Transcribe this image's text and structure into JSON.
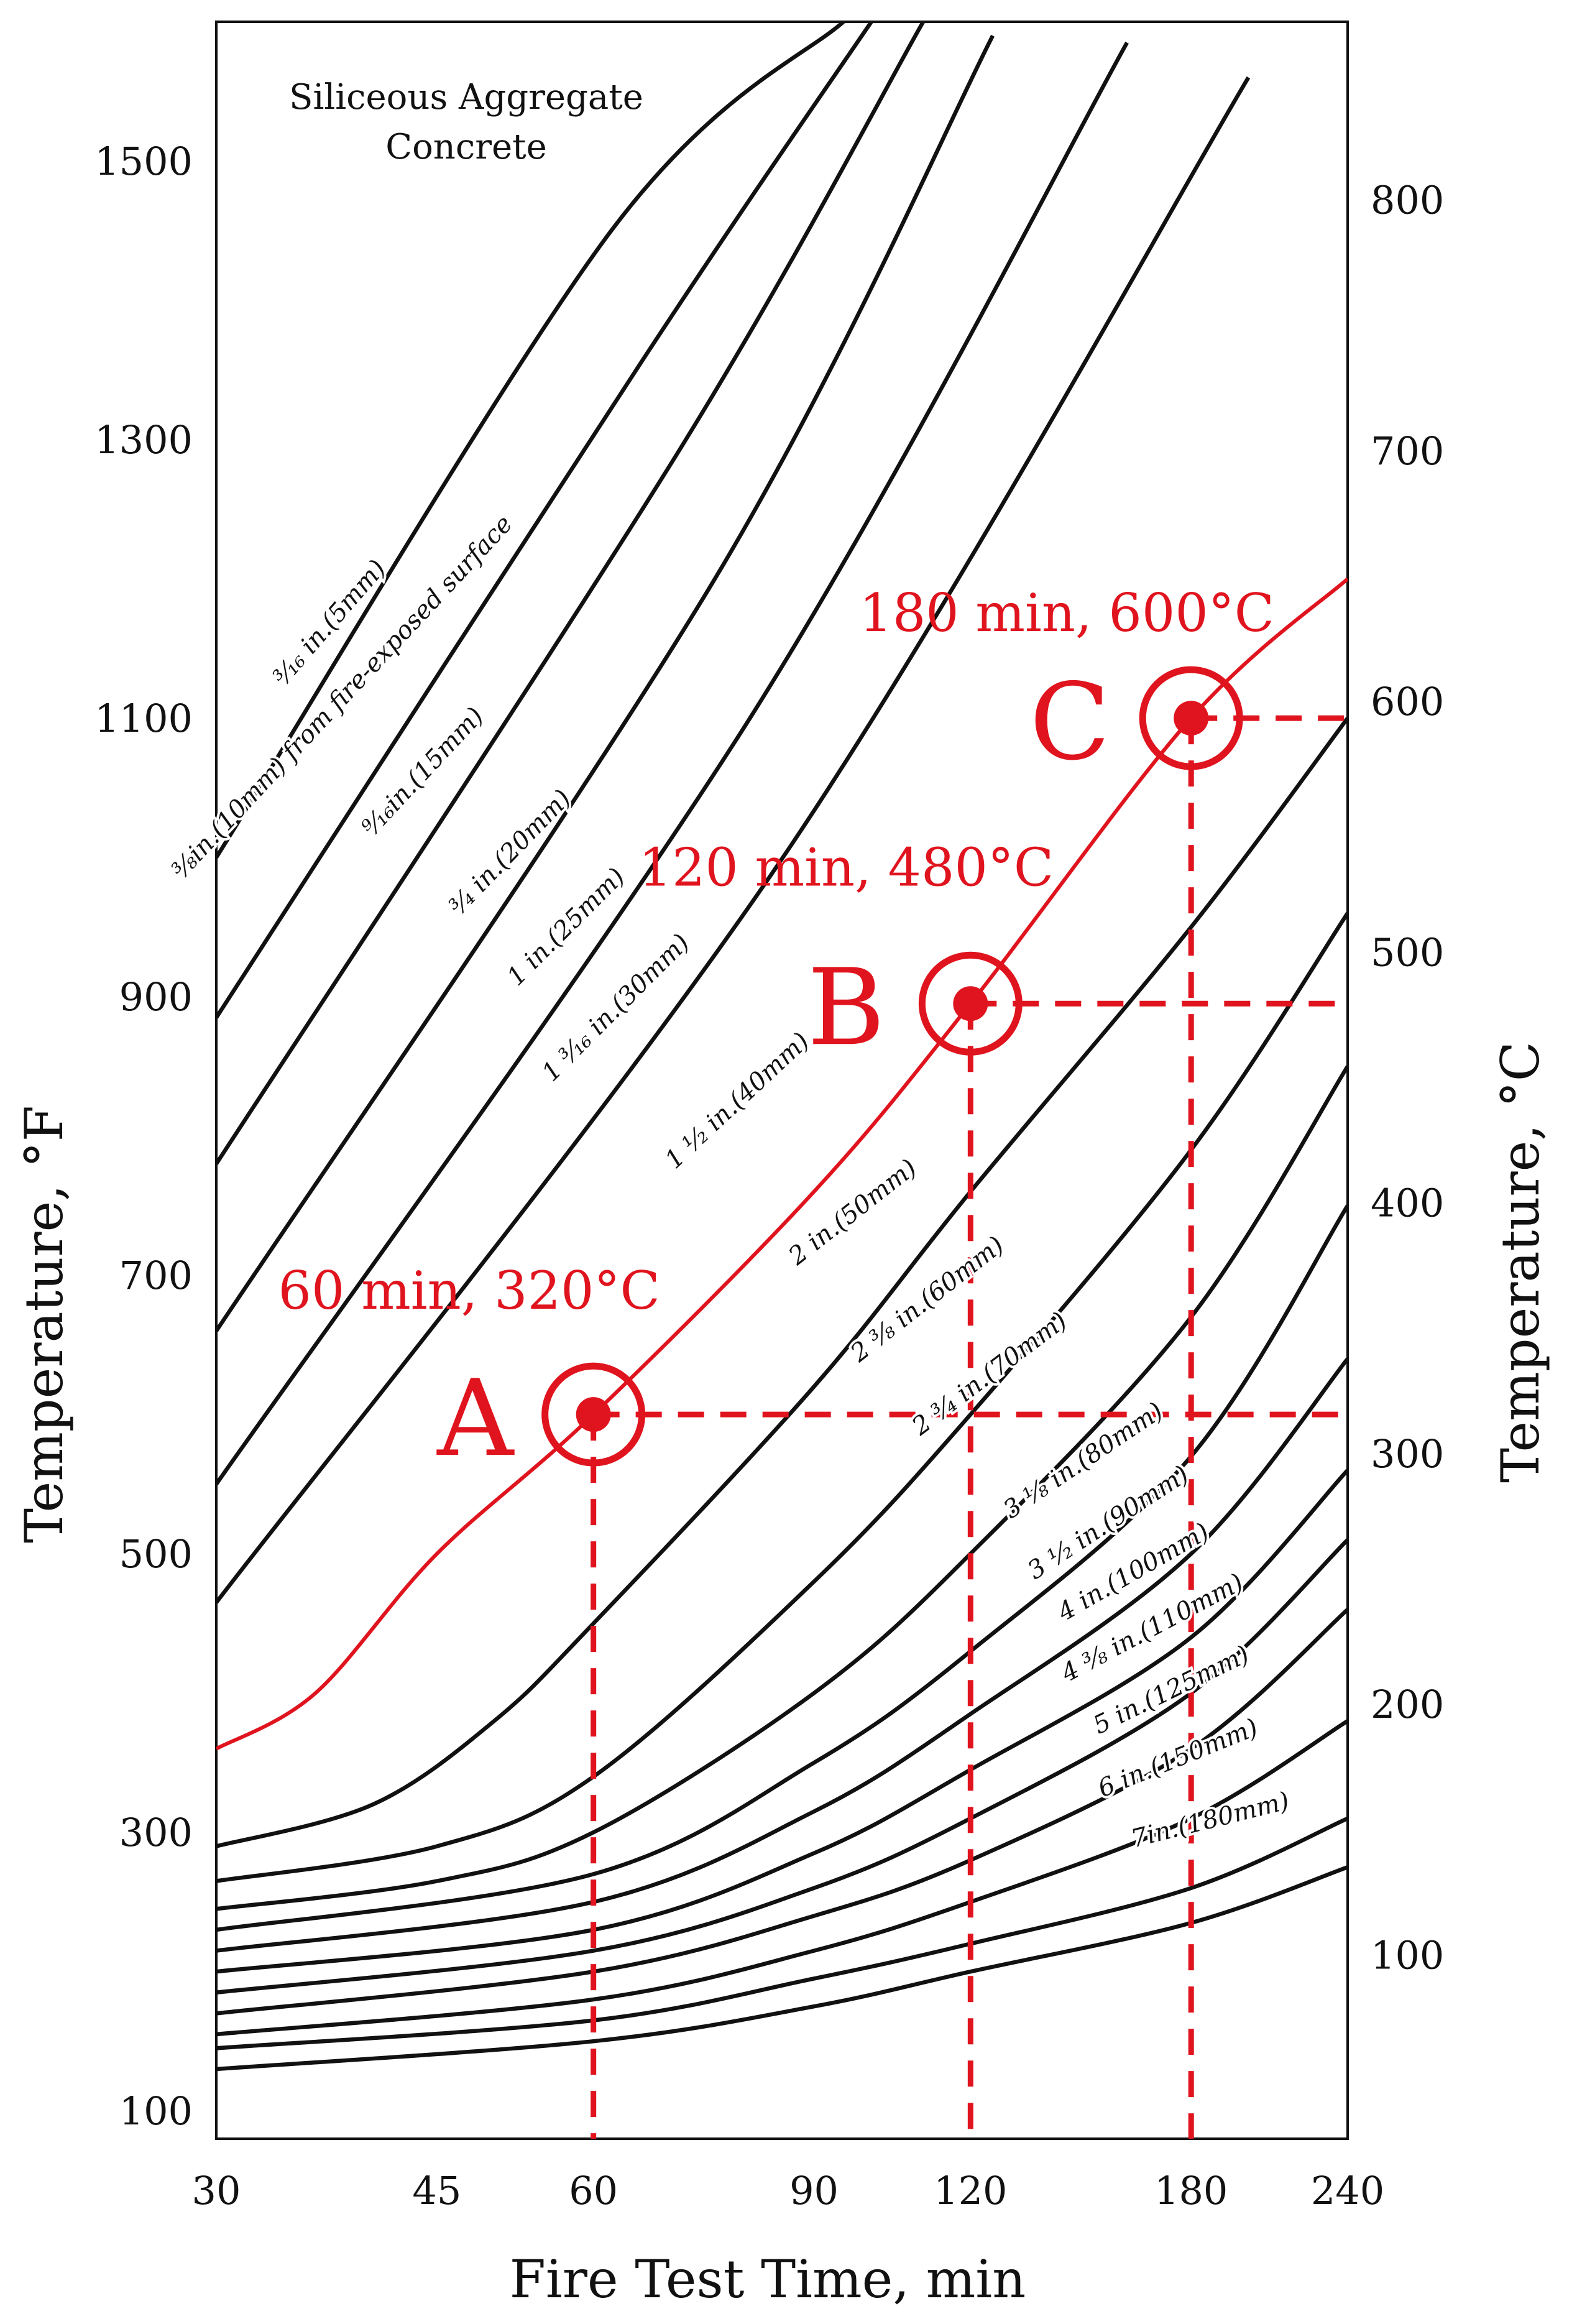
{
  "chart_data": {
    "type": "line",
    "title": [
      "Siliceous Aggregate",
      "Concrete"
    ],
    "xlabel": "Fire Test Time, min",
    "ylabel_left": "Temperature, °F",
    "ylabel_right": "Temperature, °C",
    "x_scale": "log",
    "xlim": [
      30,
      240
    ],
    "ylim_F": [
      80,
      1600
    ],
    "x_ticks": [
      30,
      45,
      60,
      90,
      120,
      180,
      240
    ],
    "y_ticks_F": [
      100,
      300,
      500,
      700,
      900,
      1100,
      1300,
      1500
    ],
    "y_ticks_C": [
      100,
      200,
      300,
      400,
      500,
      600,
      700,
      800
    ],
    "grid": false,
    "series": [
      {
        "name": "3/16 in.(5mm)",
        "label": "³⁄₁₆ in.(5mm)",
        "highlight": false,
        "points": [
          [
            30,
            1000
          ],
          [
            62,
            1450
          ],
          [
            95,
            1600
          ]
        ]
      },
      {
        "name": "3/8 in.(10mm) from fire-exposed surface",
        "label": "³⁄₈in.(10mm)  from fire-exposed surface",
        "highlight": false,
        "points": [
          [
            30,
            885
          ],
          [
            66,
            1360
          ],
          [
            100,
            1600
          ]
        ]
      },
      {
        "name": "9/16 in.(15mm)",
        "label": "⁹⁄₁₆in.(15mm)",
        "highlight": false,
        "points": [
          [
            30,
            780
          ],
          [
            70,
            1290
          ],
          [
            110,
            1600
          ]
        ]
      },
      {
        "name": "3/4 in.(20mm)",
        "label": "³⁄₄ in.(20mm)",
        "highlight": false,
        "points": [
          [
            30,
            660
          ],
          [
            75,
            1200
          ],
          [
            125,
            1590
          ]
        ]
      },
      {
        "name": "1 in.(25mm)",
        "label": "1 in.(25mm)",
        "highlight": false,
        "points": [
          [
            30,
            550
          ],
          [
            80,
            1100
          ],
          [
            160,
            1585
          ]
        ]
      },
      {
        "name": "1 3/16 in.(30mm)",
        "label": "1 ³⁄₁₆ in.(30mm)",
        "highlight": false,
        "points": [
          [
            30,
            465
          ],
          [
            85,
            1000
          ],
          [
            200,
            1560
          ]
        ]
      },
      {
        "name": "1 1/2 in.(40mm)",
        "label": "1 ¹⁄₂ in.(40mm)",
        "highlight": true,
        "points": [
          [
            30,
            360
          ],
          [
            36,
            400
          ],
          [
            45,
            500
          ],
          [
            60,
            600
          ],
          [
            90,
            760
          ],
          [
            120,
            895
          ],
          [
            180,
            1100
          ],
          [
            240,
            1200
          ]
        ]
      },
      {
        "name": "2 in.(50mm)",
        "label": "2 in.(50mm)",
        "highlight": false,
        "points": [
          [
            30,
            290
          ],
          [
            40,
            320
          ],
          [
            50,
            380
          ],
          [
            60,
            450
          ],
          [
            90,
            620
          ],
          [
            120,
            760
          ],
          [
            180,
            950
          ],
          [
            240,
            1100
          ]
        ]
      },
      {
        "name": "2 3/8 in.(60mm)",
        "label": "2 ³⁄₈ in.(60mm)",
        "highlight": false,
        "points": [
          [
            30,
            265
          ],
          [
            45,
            290
          ],
          [
            60,
            340
          ],
          [
            90,
            480
          ],
          [
            120,
            600
          ],
          [
            180,
            790
          ],
          [
            240,
            960
          ]
        ]
      },
      {
        "name": "2 3/4 in.(70mm)",
        "label": "2 ³⁄₄ in.(70mm)",
        "highlight": false,
        "points": [
          [
            30,
            245
          ],
          [
            45,
            265
          ],
          [
            60,
            300
          ],
          [
            90,
            400
          ],
          [
            120,
            500
          ],
          [
            180,
            670
          ],
          [
            240,
            850
          ]
        ]
      },
      {
        "name": "3 1/8 in.(80mm)",
        "label": "3 ¹⁄₈ in.(80mm)",
        "highlight": false,
        "points": [
          [
            30,
            230
          ],
          [
            60,
            270
          ],
          [
            90,
            350
          ],
          [
            120,
            430
          ],
          [
            180,
            570
          ],
          [
            240,
            750
          ]
        ]
      },
      {
        "name": "3 1/2 in.(90mm)",
        "label": "3 ¹⁄₂ in.(90mm)",
        "highlight": false,
        "points": [
          [
            30,
            215
          ],
          [
            60,
            250
          ],
          [
            90,
            315
          ],
          [
            120,
            385
          ],
          [
            180,
            500
          ],
          [
            240,
            640
          ]
        ]
      },
      {
        "name": "4 in.(100mm)",
        "label": "4 in.(100mm)",
        "highlight": false,
        "points": [
          [
            30,
            200
          ],
          [
            60,
            230
          ],
          [
            90,
            285
          ],
          [
            120,
            345
          ],
          [
            180,
            440
          ],
          [
            240,
            560
          ]
        ]
      },
      {
        "name": "4 3/8 in.(110mm)",
        "label": "4 ³⁄₈ in.(110mm)",
        "highlight": false,
        "points": [
          [
            30,
            185
          ],
          [
            60,
            215
          ],
          [
            90,
            260
          ],
          [
            120,
            310
          ],
          [
            180,
            400
          ],
          [
            240,
            510
          ]
        ]
      },
      {
        "name": "5 in.(125mm)",
        "label": "5 in.(125mm)",
        "highlight": false,
        "points": [
          [
            30,
            170
          ],
          [
            60,
            200
          ],
          [
            90,
            240
          ],
          [
            120,
            280
          ],
          [
            180,
            360
          ],
          [
            240,
            460
          ]
        ]
      },
      {
        "name": "6 in.(150mm)",
        "label": "6 in.(150mm)",
        "highlight": false,
        "points": [
          [
            30,
            155
          ],
          [
            60,
            180
          ],
          [
            90,
            215
          ],
          [
            120,
            250
          ],
          [
            180,
            310
          ],
          [
            240,
            380
          ]
        ]
      },
      {
        "name": "7 in.(180mm)",
        "label": "7in.(180mm)",
        "highlight": false,
        "points": [
          [
            30,
            145
          ],
          [
            60,
            165
          ],
          [
            90,
            195
          ],
          [
            120,
            220
          ],
          [
            180,
            260
          ],
          [
            240,
            310
          ]
        ]
      },
      {
        "name": "bottom curve",
        "label": "",
        "highlight": false,
        "points": [
          [
            30,
            130
          ],
          [
            60,
            150
          ],
          [
            90,
            175
          ],
          [
            120,
            200
          ],
          [
            180,
            235
          ],
          [
            240,
            275
          ]
        ]
      }
    ],
    "annotations": [
      {
        "letter": "A",
        "time_min": 60,
        "temp_F": 600,
        "temp_C": 320,
        "text": "60 min, 320°C"
      },
      {
        "letter": "B",
        "time_min": 120,
        "temp_F": 895,
        "temp_C": 480,
        "text": "120 min, 480°C"
      },
      {
        "letter": "C",
        "time_min": 180,
        "temp_F": 1100,
        "temp_C": 600,
        "text": "180 min, 600°C"
      }
    ],
    "colors": {
      "curve": "#111111",
      "highlight": "#e0141e"
    }
  }
}
